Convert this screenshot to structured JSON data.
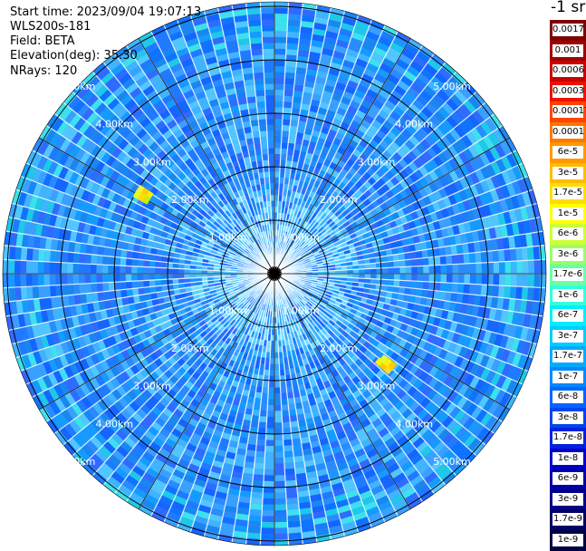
{
  "header": {
    "start_time": "Start time: 2023/09/04 19:07:13",
    "instrument": "WLS200s-181",
    "field": "Field: BETA",
    "elevation": "Elevation(deg): 35.30",
    "nrays": "NRays: 120"
  },
  "colorbar": {
    "unit_label": "-1 sr",
    "labels": [
      "0.0017",
      "0.001",
      "0.0006",
      "0.0003",
      "0.00017",
      "0.0001",
      "6e-5",
      "3e-5",
      "1.7e-5",
      "1e-5",
      "6e-6",
      "3e-6",
      "1.7e-6",
      "1e-6",
      "6e-7",
      "3e-7",
      "1.7e-7",
      "1e-7",
      "6e-8",
      "3e-8",
      "1.7e-8",
      "1e-8",
      "6e-9",
      "3e-9",
      "1.7e-9",
      "1e-9"
    ],
    "colors": [
      "#800000",
      "#a00000",
      "#cc0000",
      "#ee1100",
      "#ff4400",
      "#ff7700",
      "#ff9900",
      "#ffbb00",
      "#ffdd00",
      "#ffff00",
      "#ccff33",
      "#99ff66",
      "#66ffaa",
      "#33ffdd",
      "#00eeff",
      "#00ccff",
      "#00aaff",
      "#0088ff",
      "#0066ff",
      "#0044ee",
      "#0022dd",
      "#0000cc",
      "#0000aa",
      "#000088",
      "#000066",
      "#000044"
    ]
  },
  "range_rings": {
    "labels": [
      "1.00km",
      "2.00km",
      "3.00km",
      "4.00km",
      "5.00km"
    ]
  }
}
